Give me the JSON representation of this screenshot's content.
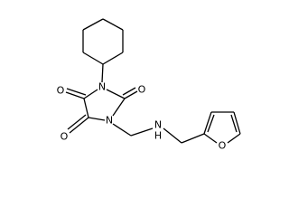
{
  "atoms": [
    {
      "label": "N"
    },
    {
      "label": "N"
    },
    {
      "label": "O"
    },
    {
      "label": "O"
    },
    {
      "label": "O"
    },
    {
      "label": "N"
    },
    {
      "label": "H"
    },
    {
      "label": "O"
    }
  ]
}
